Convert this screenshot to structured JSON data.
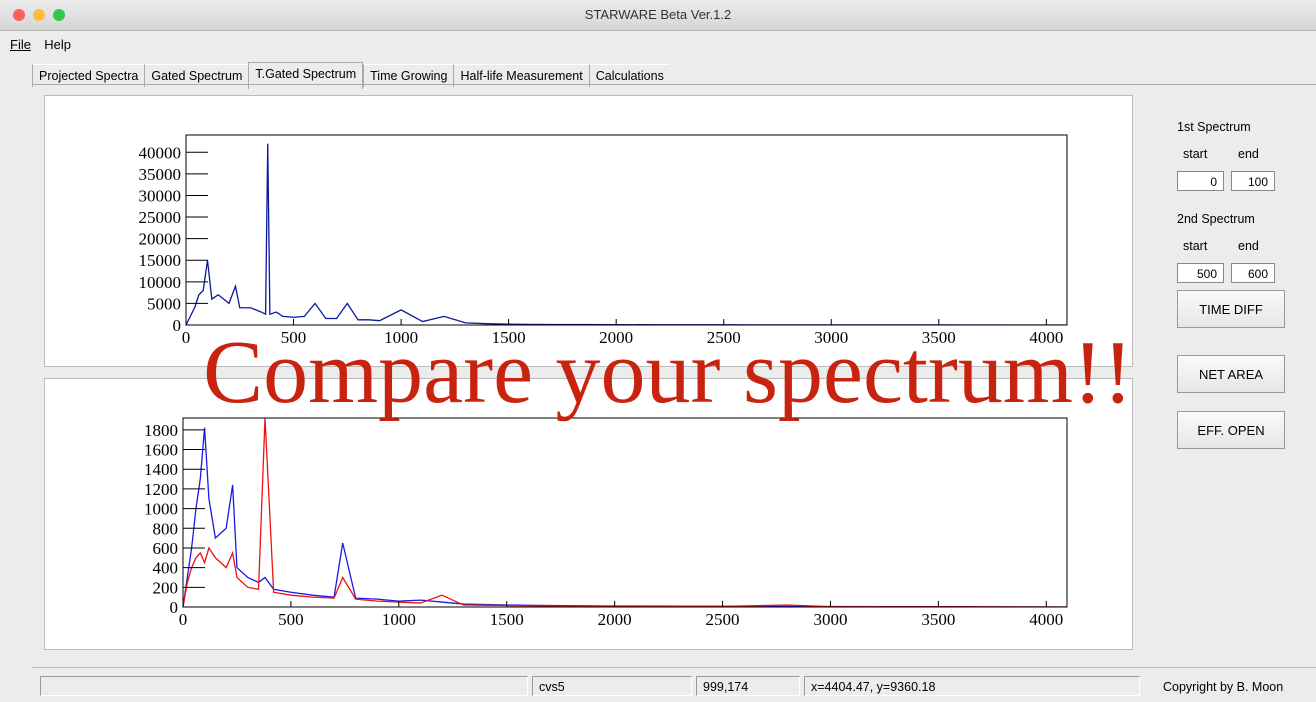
{
  "window": {
    "title": "STARWARE Beta Ver.1.2"
  },
  "menu": [
    "File",
    "Help"
  ],
  "tabs": [
    "Projected Spectra",
    "Gated Spectrum",
    "T.Gated Spectrum",
    "Time Growing",
    "Half-life Measurement",
    "Calculations"
  ],
  "active_tab": 2,
  "overlay": "Compare your spectrum!!",
  "chart_data": [
    {
      "type": "line",
      "xlim": [
        0,
        4096
      ],
      "ylim": [
        0,
        44000
      ],
      "xticks": [
        0,
        500,
        1000,
        1500,
        2000,
        2500,
        3000,
        3500,
        4000
      ],
      "yticks": [
        0,
        5000,
        10000,
        15000,
        20000,
        25000,
        30000,
        35000,
        40000
      ],
      "x": [
        0,
        20,
        40,
        60,
        80,
        100,
        120,
        150,
        200,
        230,
        250,
        300,
        350,
        370,
        380,
        390,
        420,
        450,
        500,
        550,
        600,
        650,
        700,
        750,
        800,
        850,
        900,
        1000,
        1100,
        1200,
        1300,
        1400,
        1500,
        1600,
        1700,
        1800,
        2000,
        2200,
        2500,
        2800,
        3000,
        3500,
        4096
      ],
      "series": [
        {
          "color": "#0a1a9a",
          "values": [
            0,
            2000,
            4000,
            7000,
            8000,
            15000,
            6000,
            7000,
            5000,
            9000,
            4000,
            4000,
            3000,
            2500,
            42000,
            2500,
            3000,
            2000,
            1800,
            2000,
            5000,
            1500,
            1500,
            5000,
            1200,
            1200,
            1000,
            3500,
            800,
            2000,
            500,
            300,
            200,
            150,
            100,
            100,
            80,
            50,
            40,
            30,
            20,
            10,
            0
          ]
        }
      ]
    },
    {
      "type": "line",
      "xlim": [
        0,
        4096
      ],
      "ylim": [
        0,
        1920
      ],
      "xticks": [
        0,
        500,
        1000,
        1500,
        2000,
        2500,
        3000,
        3500,
        4000
      ],
      "yticks": [
        0,
        200,
        400,
        600,
        800,
        1000,
        1200,
        1400,
        1600,
        1800
      ],
      "x": [
        0,
        20,
        40,
        60,
        80,
        100,
        120,
        150,
        200,
        230,
        250,
        300,
        350,
        380,
        420,
        500,
        600,
        700,
        740,
        800,
        900,
        1000,
        1100,
        1200,
        1300,
        1500,
        1700,
        2000,
        2500,
        2800,
        3000,
        3500,
        4096
      ],
      "series": [
        {
          "color": "#1a1ae6",
          "values": [
            0,
            300,
            600,
            1000,
            1300,
            1820,
            1100,
            700,
            800,
            1240,
            400,
            300,
            250,
            300,
            180,
            150,
            120,
            100,
            650,
            90,
            80,
            60,
            70,
            50,
            30,
            20,
            15,
            10,
            8,
            6,
            5,
            3,
            0
          ]
        },
        {
          "color": "#ee1111",
          "values": [
            0,
            250,
            400,
            500,
            550,
            450,
            600,
            500,
            400,
            550,
            300,
            200,
            180,
            1920,
            150,
            120,
            100,
            90,
            300,
            80,
            60,
            50,
            40,
            120,
            20,
            15,
            10,
            8,
            6,
            20,
            4,
            2,
            0
          ]
        }
      ]
    }
  ],
  "controls": {
    "first": {
      "label": "1st Spectrum",
      "start_label": "start",
      "end_label": "end",
      "start": "0",
      "end": "100"
    },
    "second": {
      "label": "2nd Spectrum",
      "start_label": "start",
      "end_label": "end",
      "start": "500",
      "end": "600"
    },
    "buttons": [
      "TIME DIFF",
      "NET AREA",
      "EFF. OPEN"
    ]
  },
  "status": [
    "cvs5",
    "999,174",
    "x=4404.47, y=9360.18"
  ],
  "copyright": "Copyright by B. Moon"
}
